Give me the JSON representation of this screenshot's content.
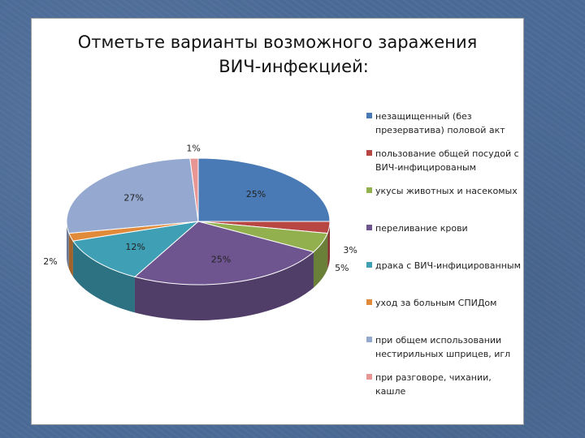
{
  "chart_data": {
    "type": "pie",
    "title_line1": "Отметьте  варианты возможного заражения",
    "title_line2": "ВИЧ-инфекцией:",
    "categories": [
      "незащищенный (без презерватива) половой акт",
      "пользование общей посудой с ВИЧ-инфицированым",
      "укусы животных и насекомых",
      "переливание крови",
      "драка с ВИЧ-инфицированным",
      "уход за больным СПИДом",
      "при общем использовании нестирильных шприцев, игл",
      "при разговоре, чихании,  кашле"
    ],
    "values": [
      25,
      3,
      5,
      25,
      12,
      2,
      27,
      1
    ],
    "data_labels": [
      "25%",
      "3%",
      "5%",
      "25%",
      "12%",
      "2%",
      "27%",
      "1%"
    ],
    "colors": [
      "#4a7ab5",
      "#b84744",
      "#93b04e",
      "#6f5590",
      "#3f9fb5",
      "#e08a3a",
      "#94a8d0",
      "#e79693"
    ],
    "legend_position": "right",
    "style": "3d"
  }
}
